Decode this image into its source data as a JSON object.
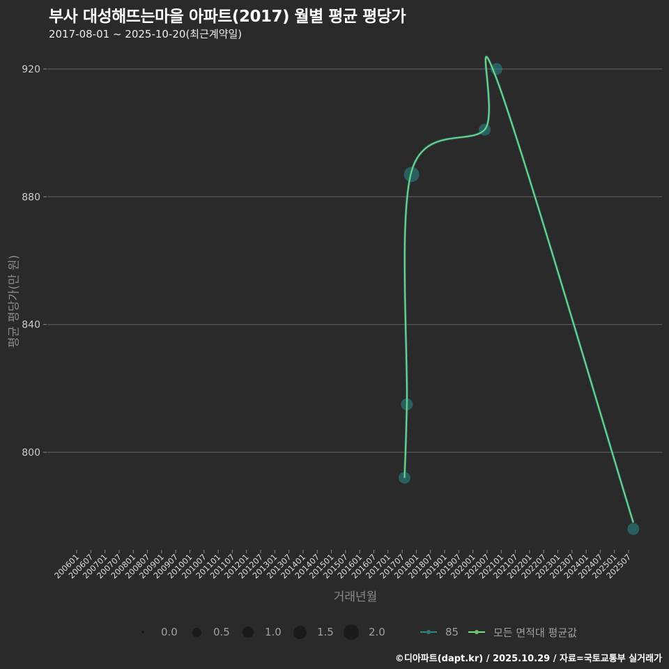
{
  "header": {
    "title": "부사 대성해뜨는마을 아파트(2017) 월별 평균 평당가",
    "subtitle": "2017-08-01 ~ 2025-10-20(최근계약일)"
  },
  "axes": {
    "ylabel": "평균 평당가(만 원)",
    "xlabel": "거래년월",
    "yticks": [
      "800",
      "840",
      "880",
      "920"
    ]
  },
  "legend": {
    "size_entries": [
      "0.0",
      "0.5",
      "1.0",
      "1.5",
      "2.0"
    ],
    "series_85": "85",
    "series_all": "모든 면적대 평균값"
  },
  "caption": "©디아파트(dapt.kr) / 2025.10.29 / 자료=국토교통부 실거래가",
  "colors": {
    "background": "#2a2a2a",
    "grid": "#5c5c5c",
    "series_85": "#2a8a8a",
    "series_all": "#7ee07e"
  },
  "chart_data": {
    "type": "line",
    "title": "부사 대성해뜨는마을 아파트(2017) 월별 평균 평당가",
    "subtitle": "2017-08-01 ~ 2025-10-20(최근계약일)",
    "xlabel": "거래년월",
    "ylabel": "평균 평당가(만 원)",
    "ylim": [
      775,
      925
    ],
    "grid": true,
    "legend_position": "bottom",
    "x_ticks": [
      "200601",
      "200607",
      "200701",
      "200707",
      "200801",
      "200807",
      "200901",
      "200907",
      "201001",
      "201007",
      "201101",
      "201107",
      "201201",
      "201207",
      "201301",
      "201307",
      "201401",
      "201407",
      "201501",
      "201507",
      "201601",
      "201607",
      "201701",
      "201707",
      "201801",
      "201807",
      "201901",
      "201907",
      "202001",
      "202007",
      "202101",
      "202107",
      "202201",
      "202207",
      "202301",
      "202307",
      "202401",
      "202407",
      "202501",
      "202507"
    ],
    "y_ticks": [
      800,
      840,
      880,
      920
    ],
    "series": [
      {
        "name": "85",
        "kind": "points (size = trade count)",
        "x": [
          "201708",
          "201709",
          "201711",
          "202006",
          "202011",
          "202509"
        ],
        "values": [
          792,
          815,
          887,
          901,
          920,
          776
        ],
        "sizes": [
          1,
          1,
          2,
          1,
          1,
          1
        ]
      },
      {
        "name": "모든 면적대 평균값",
        "kind": "smoothed line",
        "x": [
          "201708",
          "201709",
          "201711",
          "202006",
          "202011",
          "202509"
        ],
        "values": [
          792,
          815,
          888,
          901,
          917,
          778
        ]
      }
    ],
    "size_legend": [
      0.0,
      0.5,
      1.0,
      1.5,
      2.0
    ]
  }
}
